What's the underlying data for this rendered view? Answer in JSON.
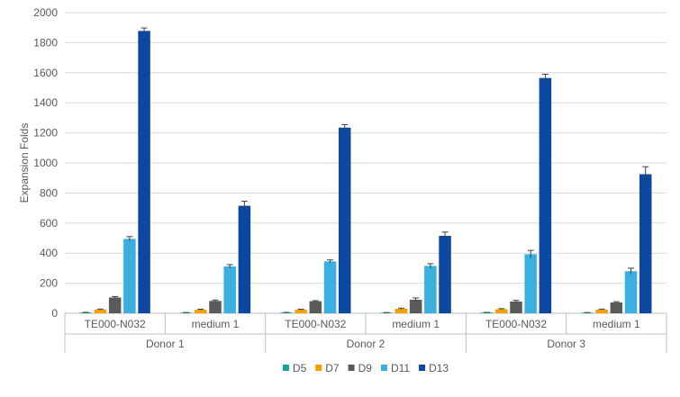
{
  "chart_data": {
    "type": "bar",
    "title": "",
    "ylabel": "Expansion Folds",
    "xlabel": "",
    "ylim": [
      0,
      2000
    ],
    "yticks": [
      0,
      200,
      400,
      600,
      800,
      1000,
      1200,
      1400,
      1600,
      1800,
      2000
    ],
    "grid": true,
    "legend_position": "bottom",
    "groups": [
      "Donor 1",
      "Donor 2",
      "Donor 3"
    ],
    "categories": [
      "TE000-N032",
      "medium 1",
      "TE000-N032",
      "medium 1",
      "TE000-N032",
      "medium 1"
    ],
    "category_group": [
      0,
      0,
      1,
      1,
      2,
      2
    ],
    "series": [
      {
        "name": "D5",
        "color": "#17a2a2",
        "values": [
          5,
          4,
          5,
          4,
          5,
          4
        ],
        "errors": [
          1,
          1,
          1,
          1,
          1,
          1
        ]
      },
      {
        "name": "D7",
        "color": "#f5a000",
        "values": [
          25,
          24,
          24,
          30,
          27,
          25
        ],
        "errors": [
          3,
          3,
          3,
          4,
          4,
          3
        ]
      },
      {
        "name": "D9",
        "color": "#5a5a5a",
        "values": [
          105,
          82,
          80,
          90,
          78,
          72
        ],
        "errors": [
          6,
          6,
          4,
          12,
          8,
          5
        ]
      },
      {
        "name": "D11",
        "color": "#3aafe0",
        "values": [
          495,
          312,
          345,
          315,
          393,
          280
        ],
        "errors": [
          15,
          12,
          10,
          15,
          25,
          20
        ]
      },
      {
        "name": "D13",
        "color": "#0d48a0",
        "values": [
          1878,
          715,
          1235,
          515,
          1565,
          925
        ],
        "errors": [
          20,
          30,
          20,
          25,
          25,
          50
        ]
      }
    ]
  }
}
